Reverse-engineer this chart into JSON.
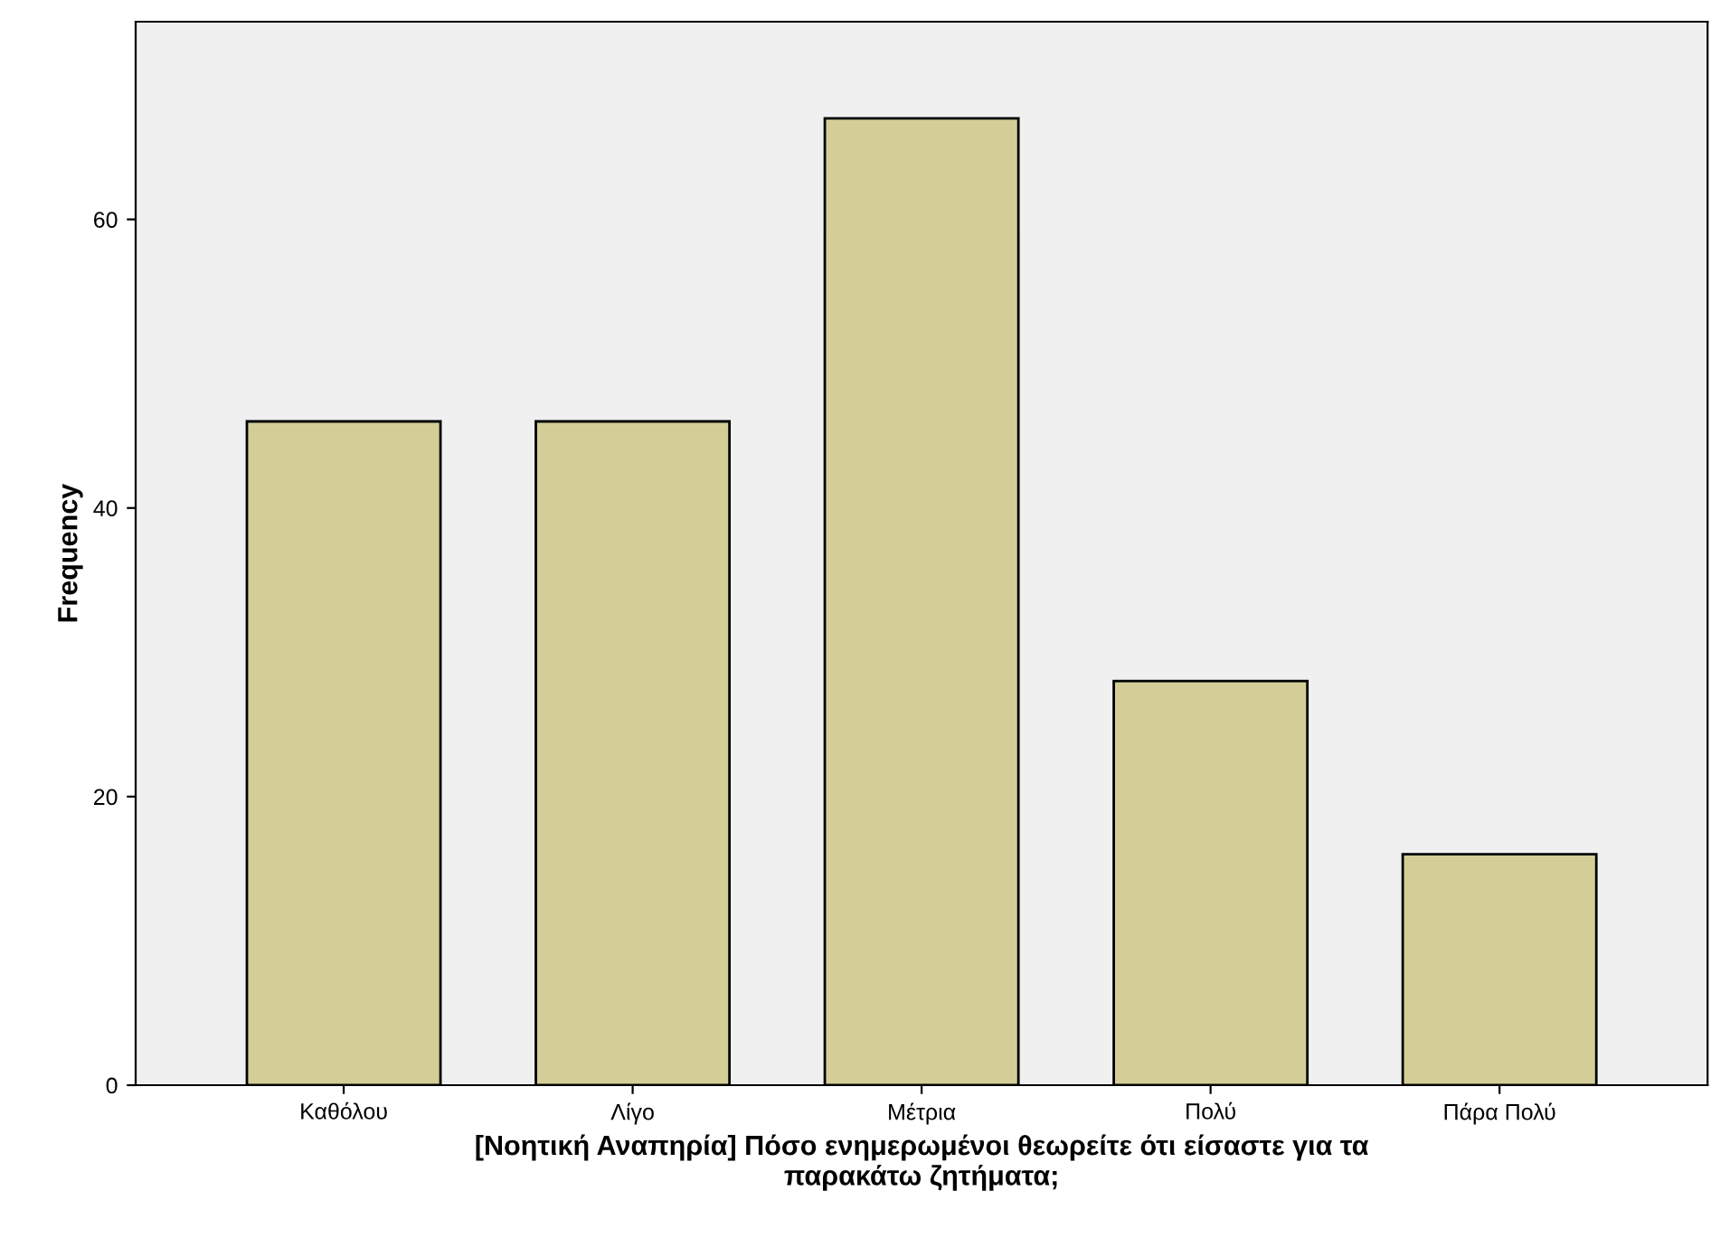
{
  "chart_data": {
    "type": "bar",
    "xlabel": "[Νοητική Αναπηρία] Πόσο ενημερωμένοι θεωρείτε ότι είσαστε για τα\nπαρακάτω ζητήματα;",
    "ylabel": "Frequency",
    "categories": [
      "Καθόλου",
      "Λίγο",
      "Μέτρια",
      "Πολύ",
      "Πάρα Πολύ"
    ],
    "values": [
      46,
      46,
      67,
      28,
      16
    ],
    "color": "#d3ce97",
    "ylim": [
      0,
      73.7
    ],
    "yticks": [
      0,
      20,
      40,
      60
    ],
    "grid": false
  }
}
